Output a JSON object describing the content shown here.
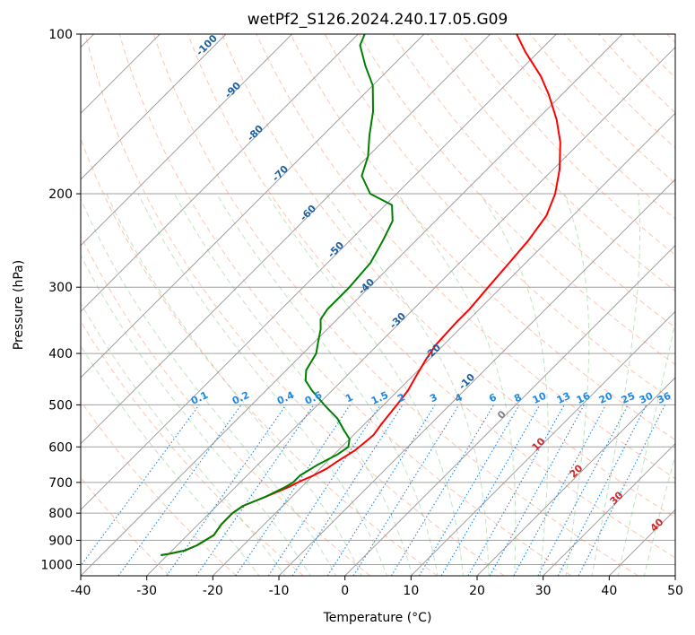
{
  "chart_data": {
    "type": "line",
    "chart_kind": "skew-t log-p",
    "title": "wetPf2_S126.2024.240.17.05.G09",
    "xlabel": "Temperature (°C)",
    "ylabel": "Pressure (hPa)",
    "xlim": [
      -40,
      50
    ],
    "ylim": [
      1050,
      100
    ],
    "y_scale": "log",
    "x_ticks": [
      -40,
      -30,
      -20,
      -10,
      0,
      10,
      20,
      30,
      40,
      50
    ],
    "y_ticks": [
      100,
      200,
      300,
      400,
      500,
      600,
      700,
      800,
      900,
      1000
    ],
    "skew": 45,
    "grid": true,
    "series": [
      {
        "color": "#ff0000",
        "points": [
          [
            -31.0,
            960
          ],
          [
            -30.0,
            955
          ],
          [
            -28.0,
            940
          ],
          [
            -27.0,
            920
          ],
          [
            -26.5,
            900
          ],
          [
            -26.0,
            880
          ],
          [
            -26.5,
            840
          ],
          [
            -26.5,
            800
          ],
          [
            -26.0,
            775
          ],
          [
            -25.0,
            760
          ],
          [
            -24.0,
            745
          ],
          [
            -22.0,
            715
          ],
          [
            -21.0,
            695
          ],
          [
            -20.0,
            680
          ],
          [
            -19.0,
            660
          ],
          [
            -18.5,
            640
          ],
          [
            -17.5,
            610
          ],
          [
            -17.2,
            590
          ],
          [
            -17.0,
            570
          ],
          [
            -17.5,
            540
          ],
          [
            -18.0,
            500
          ],
          [
            -18.5,
            470
          ],
          [
            -19.5,
            440
          ],
          [
            -20.5,
            410
          ],
          [
            -21.2,
            385
          ],
          [
            -21.5,
            350
          ],
          [
            -21.5,
            330
          ],
          [
            -22.0,
            300
          ],
          [
            -22.5,
            270
          ],
          [
            -23.0,
            245
          ],
          [
            -24.0,
            220
          ],
          [
            -26.0,
            200
          ],
          [
            -29.0,
            180
          ],
          [
            -33.0,
            160
          ],
          [
            -37.0,
            145
          ],
          [
            -42.0,
            130
          ],
          [
            -46.0,
            120
          ],
          [
            -52.0,
            108
          ],
          [
            -56.0,
            100
          ]
        ]
      },
      {
        "color": "#008000",
        "points": [
          [
            -31.0,
            960
          ],
          [
            -30.0,
            955
          ],
          [
            -28.0,
            940
          ],
          [
            -27.0,
            920
          ],
          [
            -26.5,
            900
          ],
          [
            -26.0,
            880
          ],
          [
            -26.5,
            840
          ],
          [
            -26.5,
            800
          ],
          [
            -26.0,
            775
          ],
          [
            -25.0,
            760
          ],
          [
            -24.0,
            745
          ],
          [
            -22.5,
            715
          ],
          [
            -22.0,
            700
          ],
          [
            -22.0,
            680
          ],
          [
            -21.0,
            650
          ],
          [
            -19.5,
            620
          ],
          [
            -19.0,
            600
          ],
          [
            -20.0,
            580
          ],
          [
            -22.0,
            560
          ],
          [
            -25.0,
            530
          ],
          [
            -29.0,
            500
          ],
          [
            -33.0,
            470
          ],
          [
            -35.5,
            450
          ],
          [
            -37.0,
            430
          ],
          [
            -38.0,
            400
          ],
          [
            -39.5,
            380
          ],
          [
            -41.0,
            360
          ],
          [
            -42.5,
            345
          ],
          [
            -43.0,
            330
          ],
          [
            -43.0,
            300
          ],
          [
            -43.5,
            270
          ],
          [
            -45.0,
            245
          ],
          [
            -46.5,
            225
          ],
          [
            -49.0,
            210
          ],
          [
            -54.0,
            200
          ],
          [
            -58.0,
            185
          ],
          [
            -60.0,
            170
          ],
          [
            -63.0,
            155
          ],
          [
            -66.0,
            140
          ],
          [
            -70.0,
            125
          ],
          [
            -74.0,
            115
          ],
          [
            -78.0,
            105
          ],
          [
            -79.0,
            100
          ]
        ]
      }
    ],
    "dry_adiabat_labels": [
      "-100",
      "-90",
      "-80",
      "-70",
      "-60",
      "-50",
      "-40",
      "-30",
      "-20",
      "-10"
    ],
    "moist_adiabat_labels": [
      "0",
      "10",
      "20",
      "30",
      "40"
    ],
    "mixing_ratio_labels": [
      "0.1",
      "0.2",
      "0.4",
      "0.6",
      "1",
      "1.5",
      "2",
      "3",
      "4",
      "6",
      "8",
      "10",
      "13",
      "16",
      "20",
      "25",
      "30",
      "36"
    ],
    "colors": {
      "temperature": "#ff0000",
      "dewpoint": "#008000",
      "isotherm": "#a0a0a0",
      "dry_adiabat": "#ff7f50",
      "moist_adiabat": "#4caf50",
      "mixing_ratio": "#1e88e5",
      "dry_label": "#1f5f9f",
      "moist_label": "#d62728",
      "mixing_label": "#1e88e5"
    }
  }
}
